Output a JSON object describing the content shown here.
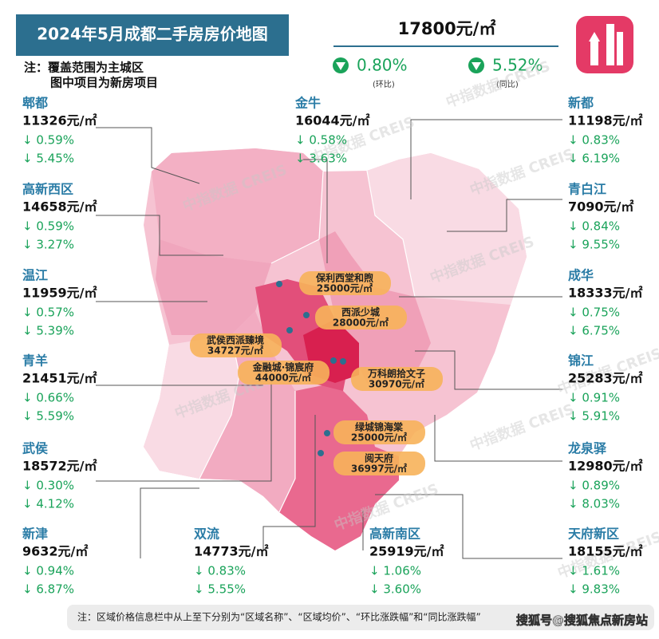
{
  "header": {
    "title": "2024年5月成都二手房房价地图",
    "notes": [
      "注：覆盖范围为主城区",
      "图中项目为新房项目"
    ]
  },
  "summary": {
    "price": "17800元/㎡",
    "mom": {
      "value": "0.80%",
      "label": "(环比)"
    },
    "yoy": {
      "value": "5.52%",
      "label": "(同比)"
    }
  },
  "districts": [
    {
      "name": "郫都",
      "price": "11326元/㎡",
      "mom": "↓ 0.59%",
      "yoy": "↓ 5.45%"
    },
    {
      "name": "高新西区",
      "price": "14658元/㎡",
      "mom": "↓ 0.59%",
      "yoy": "↓ 3.27%"
    },
    {
      "name": "温江",
      "price": "11959元/㎡",
      "mom": "↓ 0.57%",
      "yoy": "↓ 5.39%"
    },
    {
      "name": "青羊",
      "price": "21451元/㎡",
      "mom": "↓ 0.66%",
      "yoy": "↓ 5.59%"
    },
    {
      "name": "武侯",
      "price": "18572元/㎡",
      "mom": "↓ 0.30%",
      "yoy": "↓ 4.12%"
    },
    {
      "name": "新津",
      "price": "9632元/㎡",
      "mom": "↓ 0.94%",
      "yoy": "↓ 6.87%"
    },
    {
      "name": "金牛",
      "price": "16044元/㎡",
      "mom": "↓ 0.58%",
      "yoy": "↓ 3.63%"
    },
    {
      "name": "新都",
      "price": "11198元/㎡",
      "mom": "↓ 0.83%",
      "yoy": "↓ 6.19%"
    },
    {
      "name": "青白江",
      "price": "7090元/㎡",
      "mom": "↓ 0.84%",
      "yoy": "↓ 9.55%"
    },
    {
      "name": "成华",
      "price": "18333元/㎡",
      "mom": "↓ 0.75%",
      "yoy": "↓ 6.75%"
    },
    {
      "name": "锦江",
      "price": "25283元/㎡",
      "mom": "↓ 0.91%",
      "yoy": "↓ 5.91%"
    },
    {
      "name": "龙泉驿",
      "price": "12980元/㎡",
      "mom": "↓ 0.89%",
      "yoy": "↓ 8.03%"
    },
    {
      "name": "天府新区",
      "price": "18155元/㎡",
      "mom": "↓ 1.61%",
      "yoy": "↓ 9.83%"
    },
    {
      "name": "双流",
      "price": "14773元/㎡",
      "mom": "↓ 0.83%",
      "yoy": "↓ 5.55%"
    },
    {
      "name": "高新南区",
      "price": "25919元/㎡",
      "mom": "↓ 1.06%",
      "yoy": "↓ 3.60%"
    }
  ],
  "projects": [
    {
      "name": "保利西堂和煦",
      "price": "25000元/㎡"
    },
    {
      "name": "西派少城",
      "price": "28000元/㎡"
    },
    {
      "name": "武侯西派臻境",
      "price": "34727元/㎡"
    },
    {
      "name": "金融城·锦宸府",
      "price": "44000元/㎡"
    },
    {
      "name": "万科朗拾文子",
      "price": "30970元/㎡"
    },
    {
      "name": "绿城锦海棠",
      "price": "25000元/㎡"
    },
    {
      "name": "阅天府",
      "price": "36997元/㎡"
    }
  ],
  "watermark": "中指数据 CREIS",
  "footer": {
    "note": "注：区域价格信息栏中从上至下分别为“区域名称”、“区域均价”、“环比涨跌幅”和“同比涨跌幅”",
    "source": "搜狐号@搜狐焦点新房站"
  }
}
